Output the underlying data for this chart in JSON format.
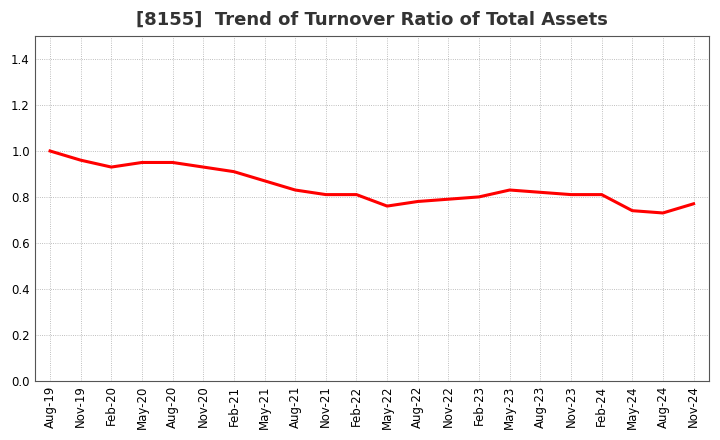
{
  "title": "[8155]  Trend of Turnover Ratio of Total Assets",
  "x_labels": [
    "Aug-19",
    "Nov-19",
    "Feb-20",
    "May-20",
    "Aug-20",
    "Nov-20",
    "Feb-21",
    "May-21",
    "Aug-21",
    "Nov-21",
    "Feb-22",
    "May-22",
    "Aug-22",
    "Nov-22",
    "Feb-23",
    "May-23",
    "Aug-23",
    "Nov-23",
    "Feb-24",
    "May-24",
    "Aug-24",
    "Nov-24"
  ],
  "y_values": [
    1.0,
    0.96,
    0.93,
    0.95,
    0.95,
    0.93,
    0.91,
    0.87,
    0.83,
    0.81,
    0.81,
    0.76,
    0.78,
    0.79,
    0.8,
    0.83,
    0.82,
    0.81,
    0.81,
    0.74,
    0.73,
    0.77
  ],
  "line_color": "#ff0000",
  "line_width": 2.2,
  "background_color": "#ffffff",
  "grid_color": "#aaaaaa",
  "ylim": [
    0.0,
    1.5
  ],
  "yticks": [
    0.0,
    0.2,
    0.4,
    0.6,
    0.8,
    1.0,
    1.2,
    1.4
  ],
  "title_fontsize": 13,
  "tick_fontsize": 8.5,
  "title_color": "#333333"
}
